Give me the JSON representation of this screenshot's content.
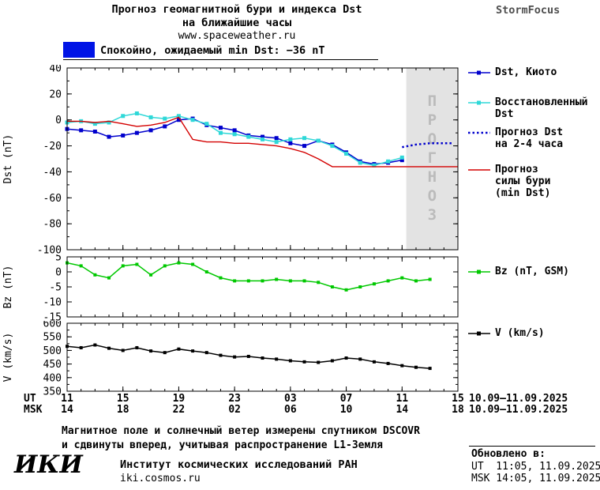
{
  "header": {
    "title_line1": "Прогноз геомагнитной бури и индекса Dst",
    "title_line2": "на ближайшие часы",
    "website": "www.spaceweather.ru",
    "brand": "StormFocus"
  },
  "status": {
    "text": "Спокойно, ожидаемый min Dst: −36 nT"
  },
  "colors": {
    "banner_blue": "#0014e6",
    "dst_kyoto": "#0000cd",
    "dst_reconstructed": "#2fd8d8",
    "dst_forecast": "#0000cd",
    "storm_forecast": "#d40000",
    "bz": "#00c800",
    "v": "#000000",
    "forecast_fill": "#e3e3e3",
    "forecast_label": "#bbbbbb"
  },
  "legend": {
    "dst_kyoto": "Dst, Киото",
    "dst_reconstructed": "Восстановленный\nDst",
    "dst_forecast": "Прогноз Dst\nна 2-4 часа",
    "storm_forecast": "Прогноз\nсилы бури\n(min Dst)",
    "bz": "Bz (nT, GSM)",
    "v": "V (km/s)"
  },
  "xaxis": {
    "ut_label": "UT",
    "msk_label": "MSK",
    "ut_ticks": [
      "11",
      "15",
      "19",
      "23",
      "03",
      "07",
      "11",
      "15"
    ],
    "msk_ticks": [
      "14",
      "18",
      "22",
      "02",
      "06",
      "10",
      "14",
      "18"
    ],
    "date_range": "10.09–11.09.2025"
  },
  "annotation": {
    "line1": "Магнитное поле и солнечный ветер измерены спутником DSCOVR",
    "line2": "и сдвинуты вперед, учитывая распространение L1-Земля"
  },
  "footer": {
    "logo": "ИКИ",
    "institute": "Институт космических исследований РАН",
    "site": "iki.cosmos.ru",
    "updated_label": "Обновлено в:",
    "updated_ut": "UT  11:05, 11.09.2025",
    "updated_msk": "MSK 14:05, 11.09.2025"
  },
  "chart_data": [
    {
      "id": "dst",
      "type": "line",
      "title": "Прогноз геомагнитной бури и индекса Dst на ближайшие часы",
      "ylabel": "Dst (nT)",
      "xlim": [
        11,
        39
      ],
      "ylim": [
        -100,
        40
      ],
      "xticks": [
        11,
        15,
        19,
        23,
        27,
        31,
        35,
        39
      ],
      "xminor_step": 1,
      "yticks": [
        40,
        20,
        0,
        -20,
        -40,
        -60,
        -80,
        -100
      ],
      "yminor_step": 10,
      "forecast_region": {
        "from": 35.3,
        "to": 39,
        "label": "ПРОГНОЗ",
        "fill": "#e3e3e3",
        "label_color": "#bbbbbb"
      },
      "series": [
        {
          "name": "Dst, Киото",
          "color": "#0000cd",
          "marker": true,
          "msize": 5,
          "width": 1.5,
          "x": [
            11,
            12,
            13,
            14,
            15,
            16,
            17,
            18,
            19,
            20,
            21,
            22,
            23,
            24,
            25,
            26,
            27,
            28,
            29,
            30,
            31,
            32,
            33,
            34,
            35
          ],
          "y": [
            -7,
            -8,
            -9,
            -13,
            -12,
            -10,
            -8,
            -5,
            0,
            1,
            -4,
            -6,
            -8,
            -12,
            -13,
            -14,
            -18,
            -20,
            -16,
            -19,
            -25,
            -32,
            -34,
            -33,
            -31
          ]
        },
        {
          "name": "Восстановленный Dst",
          "color": "#2fd8d8",
          "marker": true,
          "msize": 5,
          "width": 1.5,
          "x": [
            11,
            12,
            13,
            14,
            15,
            16,
            17,
            18,
            19,
            20,
            21,
            22,
            23,
            24,
            25,
            26,
            27,
            28,
            29,
            30,
            31,
            32,
            33,
            34,
            35
          ],
          "y": [
            -2,
            -1,
            -3,
            -2,
            3,
            5,
            2,
            1,
            3,
            0,
            -3,
            -10,
            -11,
            -13,
            -15,
            -17,
            -15,
            -14,
            -16,
            -20,
            -26,
            -33,
            -35,
            -32,
            -29
          ]
        },
        {
          "name": "Прогноз Dst на 2-4 часа",
          "color": "#0000cd",
          "marker": false,
          "width": 2.5,
          "dash": "2.5,3",
          "x": [
            35,
            36,
            37,
            38,
            38.6
          ],
          "y": [
            -21,
            -19,
            -18,
            -18,
            -18
          ]
        },
        {
          "name": "Прогноз силы бури (min Dst)",
          "color": "#d40000",
          "marker": false,
          "width": 1.4,
          "x": [
            11,
            12,
            13,
            14,
            15,
            16,
            17,
            18,
            19,
            20,
            21,
            22,
            23,
            24,
            25,
            26,
            27,
            28,
            29,
            30,
            31,
            32,
            33,
            34,
            35,
            36,
            37,
            38,
            39
          ],
          "y": [
            -1,
            -1,
            -2,
            -1,
            -3,
            -5,
            -4,
            -2,
            2,
            -15,
            -17,
            -17,
            -18,
            -18,
            -19,
            -20,
            -22,
            -25,
            -30,
            -36,
            -36,
            -36,
            -36,
            -36,
            -36,
            -36,
            -36,
            -36,
            -36
          ]
        }
      ]
    },
    {
      "id": "bz",
      "type": "line",
      "ylabel": "Bz (nT)",
      "xlim": [
        11,
        39
      ],
      "ylim": [
        -15,
        5
      ],
      "xticks": [
        11,
        15,
        19,
        23,
        27,
        31,
        35,
        39
      ],
      "xminor_step": 1,
      "yticks": [
        5,
        0,
        -5,
        -10,
        -15
      ],
      "series": [
        {
          "name": "Bz (nT, GSM)",
          "color": "#00c800",
          "marker": true,
          "msize": 4,
          "width": 1.5,
          "x": [
            11,
            12,
            13,
            14,
            15,
            16,
            17,
            18,
            19,
            20,
            21,
            22,
            23,
            24,
            25,
            26,
            27,
            28,
            29,
            30,
            31,
            32,
            33,
            34,
            35,
            36,
            37
          ],
          "y": [
            3,
            2,
            -1,
            -2,
            2,
            2.5,
            -1,
            2,
            3,
            2.5,
            0,
            -2,
            -3,
            -3,
            -3,
            -2.5,
            -3,
            -3,
            -3.5,
            -5,
            -6,
            -5,
            -4,
            -3,
            -2,
            -3,
            -2.5
          ]
        }
      ]
    },
    {
      "id": "v",
      "type": "line",
      "ylabel": "V (km/s)",
      "xlim": [
        11,
        39
      ],
      "ylim": [
        350,
        600
      ],
      "xticks": [
        11,
        15,
        19,
        23,
        27,
        31,
        35,
        39
      ],
      "xminor_step": 1,
      "yticks": [
        600,
        550,
        500,
        450,
        400,
        350
      ],
      "yminor_step": 25,
      "series": [
        {
          "name": "V (km/s)",
          "color": "#000000",
          "marker": true,
          "msize": 4,
          "width": 1.5,
          "x": [
            11,
            12,
            13,
            14,
            15,
            16,
            17,
            18,
            19,
            20,
            21,
            22,
            23,
            24,
            25,
            26,
            27,
            28,
            29,
            30,
            31,
            32,
            33,
            34,
            35,
            36,
            37
          ],
          "y": [
            515,
            510,
            520,
            508,
            500,
            510,
            498,
            492,
            505,
            498,
            492,
            482,
            476,
            478,
            472,
            468,
            462,
            458,
            456,
            462,
            472,
            468,
            458,
            452,
            444,
            438,
            434
          ]
        }
      ]
    }
  ]
}
